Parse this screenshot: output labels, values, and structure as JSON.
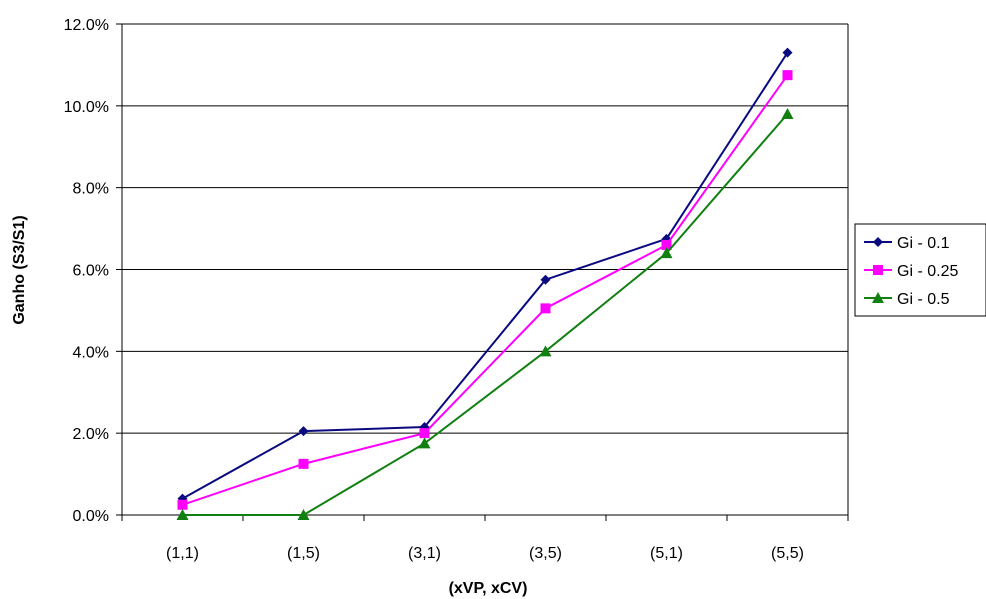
{
  "chart_data": {
    "type": "line",
    "title": "",
    "xlabel": "(xVP, xCV)",
    "ylabel": "Ganho (S3/S1)",
    "categories": [
      "(1,1)",
      "(1,5)",
      "(3,1)",
      "(3,5)",
      "(5,1)",
      "(5,5)"
    ],
    "y_ticks": [
      "0.0%",
      "2.0%",
      "4.0%",
      "6.0%",
      "8.0%",
      "10.0%",
      "12.0%"
    ],
    "ylim": [
      0,
      12
    ],
    "y_unit": "%",
    "grid": "horizontal",
    "legend_position": "right",
    "series": [
      {
        "name": "Gi - 0.1",
        "color": "#0a0a80",
        "marker": "diamond",
        "values": [
          0.4,
          2.05,
          2.15,
          5.75,
          6.75,
          11.3
        ]
      },
      {
        "name": "Gi - 0.25",
        "color": "#ff00ff",
        "marker": "square",
        "values": [
          0.25,
          1.25,
          2.0,
          5.05,
          6.6,
          10.75
        ]
      },
      {
        "name": "Gi - 0.5",
        "color": "#118011",
        "marker": "triangle",
        "values": [
          0.0,
          0.0,
          1.75,
          4.0,
          6.4,
          9.8
        ]
      }
    ]
  }
}
